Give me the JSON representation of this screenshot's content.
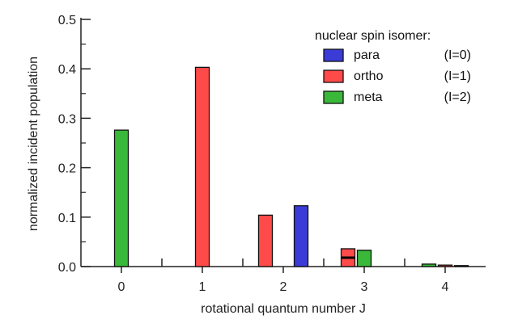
{
  "chart_data": {
    "type": "bar",
    "title": "",
    "xlabel": "rotational quantum number J",
    "ylabel": "normalized incident population",
    "xlim": [
      -0.5,
      4.5
    ],
    "ylim": [
      0,
      0.5
    ],
    "x_ticks": [
      "0",
      "1",
      "2",
      "3",
      "4"
    ],
    "y_ticks": [
      "0.0",
      "0.1",
      "0.2",
      "0.3",
      "0.4",
      "0.5"
    ],
    "grid": false,
    "legend": {
      "title": "nuclear spin isomer:",
      "placement": "top-right",
      "entries": [
        {
          "name": "para",
          "extra": "(I=0)",
          "color": "#3b3bd8"
        },
        {
          "name": "ortho",
          "extra": "(I=1)",
          "color": "#ff4a4a"
        },
        {
          "name": "meta",
          "extra": "(I=2)",
          "color": "#3ab83a"
        }
      ]
    },
    "series": [
      {
        "name": "para",
        "color": "#3b3bd8",
        "points": [
          {
            "J": 2,
            "value": 0.123
          },
          {
            "J": 4,
            "value": 0.002
          }
        ]
      },
      {
        "name": "ortho",
        "color": "#ff4a4a",
        "points": [
          {
            "J": 1,
            "value": 0.403
          },
          {
            "J": 2,
            "value": 0.104
          },
          {
            "J": 3,
            "value": 0.036
          },
          {
            "J": 4,
            "value": 0.003
          }
        ]
      },
      {
        "name": "meta",
        "color": "#3ab83a",
        "points": [
          {
            "J": 0,
            "value": 0.276
          },
          {
            "J": 3,
            "value": 0.033
          },
          {
            "J": 4,
            "value": 0.005
          }
        ]
      }
    ],
    "markers": [
      {
        "J": 3,
        "value": 0.018,
        "color": "#000000"
      }
    ]
  }
}
